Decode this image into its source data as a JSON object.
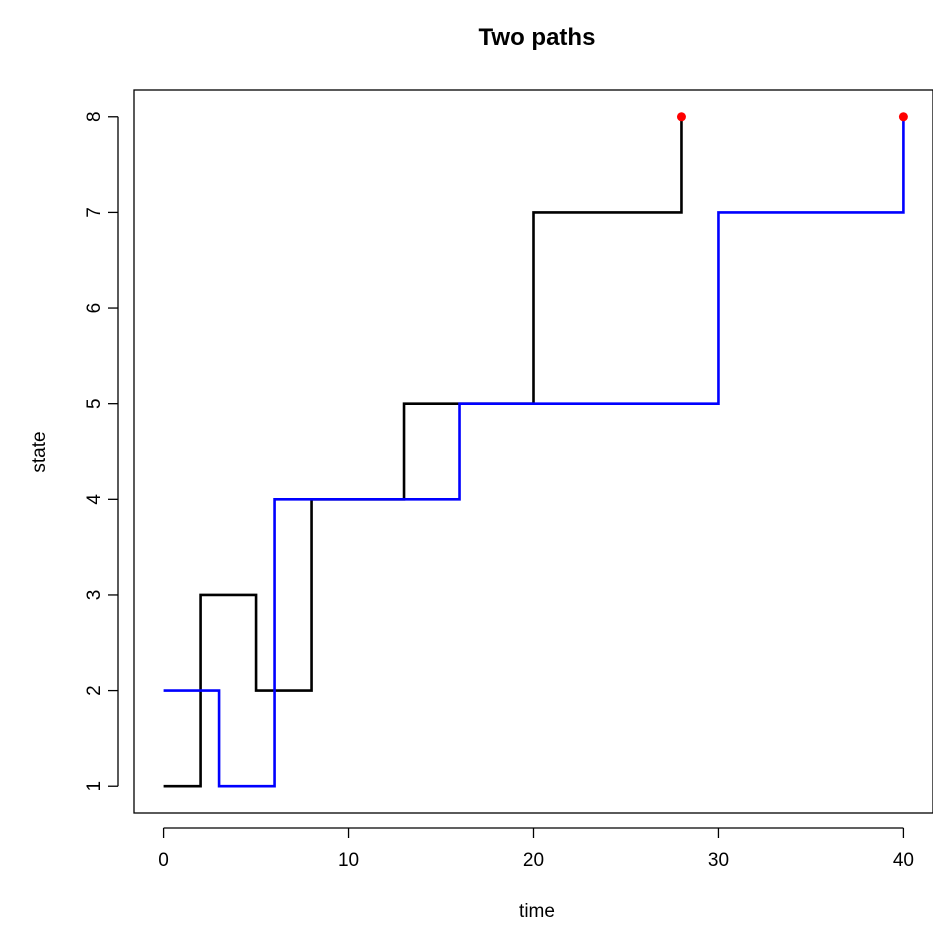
{
  "chart_data": {
    "type": "line",
    "step": "post",
    "title": "Two paths",
    "xlabel": "time",
    "ylabel": "state",
    "xlim": [
      -1.6,
      41.6
    ],
    "ylim": [
      0.72,
      8.28
    ],
    "x_ticks": [
      0,
      10,
      20,
      30,
      40
    ],
    "y_ticks": [
      1,
      2,
      3,
      4,
      5,
      6,
      7,
      8
    ],
    "grid": false,
    "series": [
      {
        "color": "#000000",
        "x": [
          0,
          2,
          5,
          8,
          13,
          16,
          20,
          28
        ],
        "y": [
          1,
          3,
          2,
          4,
          5,
          5,
          7,
          8
        ],
        "end_point": {
          "x": 28,
          "y": 8,
          "color": "#ff0000"
        }
      },
      {
        "color": "#0000ff",
        "x": [
          0,
          3,
          6,
          16,
          30,
          40
        ],
        "y": [
          2,
          1,
          4,
          5,
          7,
          8
        ],
        "end_point": {
          "x": 40,
          "y": 8,
          "color": "#ff0000"
        }
      }
    ]
  }
}
